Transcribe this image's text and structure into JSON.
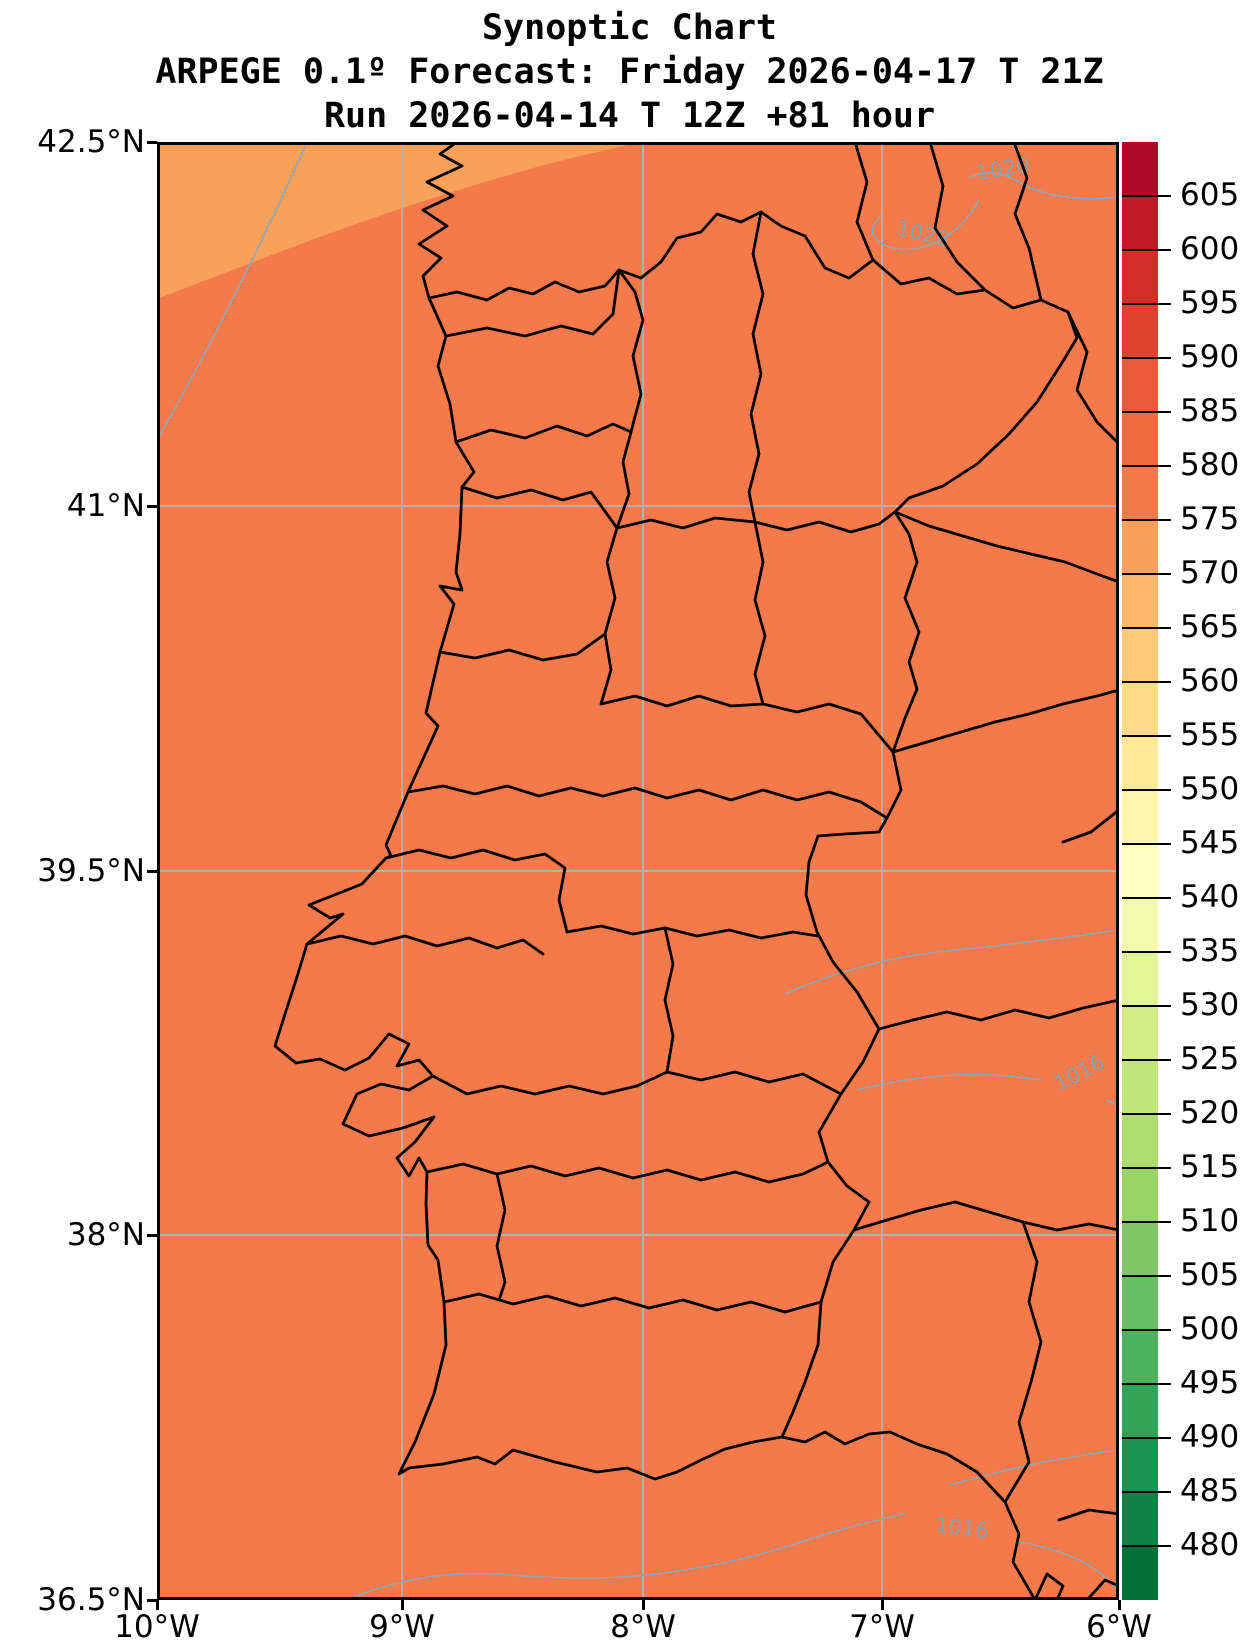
{
  "title": {
    "line1": "Synoptic Chart",
    "line2": "ARPEGE 0.1º Forecast: Friday 2026-04-17 T 21Z",
    "line3": "Run 2026-04-14 T 12Z +81 hour"
  },
  "axes": {
    "y_ticks": [
      "42.5°N",
      "41°N",
      "39.5°N",
      "38°N",
      "36.5°N"
    ],
    "x_ticks": [
      "10°W",
      "9°W",
      "8°W",
      "7°W",
      "6°W"
    ]
  },
  "colorbar": {
    "ticks": [
      605,
      600,
      595,
      590,
      585,
      580,
      575,
      570,
      565,
      560,
      555,
      550,
      545,
      540,
      535,
      530,
      525,
      520,
      515,
      510,
      505,
      500,
      495,
      490,
      485,
      480
    ],
    "level_min": 475,
    "level_max": 610,
    "level_step": 5,
    "bands": [
      {
        "from": 475,
        "color": "#067137"
      },
      {
        "from": 480,
        "color": "#0E8245"
      },
      {
        "from": 485,
        "color": "#1A9450"
      },
      {
        "from": 490,
        "color": "#30A356"
      },
      {
        "from": 495,
        "color": "#4DB15D"
      },
      {
        "from": 500,
        "color": "#68BE63"
      },
      {
        "from": 505,
        "color": "#80C866"
      },
      {
        "from": 510,
        "color": "#98D368"
      },
      {
        "from": 515,
        "color": "#AEDC6F"
      },
      {
        "from": 520,
        "color": "#C1E47B"
      },
      {
        "from": 525,
        "color": "#D3ED87"
      },
      {
        "from": 530,
        "color": "#E3F398"
      },
      {
        "from": 535,
        "color": "#F1F9AC"
      },
      {
        "from": 540,
        "color": "#FFFFBF"
      },
      {
        "from": 545,
        "color": "#FFF4AC"
      },
      {
        "from": 550,
        "color": "#FEE899"
      },
      {
        "from": 555,
        "color": "#FEDB86"
      },
      {
        "from": 560,
        "color": "#FEC877"
      },
      {
        "from": 565,
        "color": "#FDB667"
      },
      {
        "from": 570,
        "color": "#F9A05A"
      },
      {
        "from": 575,
        "color": "#F4794B"
      },
      {
        "from": 580,
        "color": "#F16B43"
      },
      {
        "from": 585,
        "color": "#EA593A"
      },
      {
        "from": 590,
        "color": "#E0422F"
      },
      {
        "from": 595,
        "color": "#D32D27"
      },
      {
        "from": 600,
        "color": "#C11B27"
      },
      {
        "from": 605,
        "color": "#AE0926"
      }
    ]
  },
  "map": {
    "fill_main": "#F4794B",
    "fill_upper_left": "#F9A05A",
    "boundary_color": "#000000",
    "gridline_color": "#b2b2b2",
    "contour_color": "#94a5b3"
  },
  "isobars": {
    "labels": [
      {
        "text": "1020"
      },
      {
        "text": "1020"
      },
      {
        "text": "1016"
      },
      {
        "text": "1016"
      }
    ]
  },
  "chart_data": {
    "type": "heatmap",
    "title": "Synoptic Chart",
    "subtitle": "ARPEGE 0.1º Forecast: Friday 2026-04-17 T 21Z",
    "run_info": "Run 2026-04-14 T 12Z +81 hour",
    "model": "ARPEGE 0.1º",
    "forecast_valid": "Friday 2026-04-17 T 21Z",
    "run_time": "2026-04-14 T 12Z",
    "lead_hours": 81,
    "x_axis": {
      "label": "longitude",
      "ticks": [
        "10°W",
        "9°W",
        "8°W",
        "7°W",
        "6°W"
      ],
      "range": [
        -10,
        -6
      ]
    },
    "y_axis": {
      "label": "latitude",
      "ticks": [
        "36.5°N",
        "38°N",
        "39.5°N",
        "41°N",
        "42.5°N"
      ],
      "range": [
        36.5,
        42.5
      ]
    },
    "grid": true,
    "colorbar": {
      "position": "right",
      "ticks": [
        480,
        485,
        490,
        495,
        500,
        505,
        510,
        515,
        520,
        525,
        530,
        535,
        540,
        545,
        550,
        555,
        560,
        565,
        570,
        575,
        580,
        585,
        590,
        595,
        600,
        605
      ],
      "levels": "475 to 610 step 5",
      "colormap": "RdYlGn reversed (green low, red high)"
    },
    "filled_field": {
      "dominant_band": "575-580",
      "secondary_band_upper_left": "570-575"
    },
    "isobar_contours": [
      {
        "value": 1020,
        "location": "upper-left diagonal and upper-right fragments"
      },
      {
        "value": 1016,
        "location": "mid-right and lower-right wavy lines"
      }
    ]
  }
}
